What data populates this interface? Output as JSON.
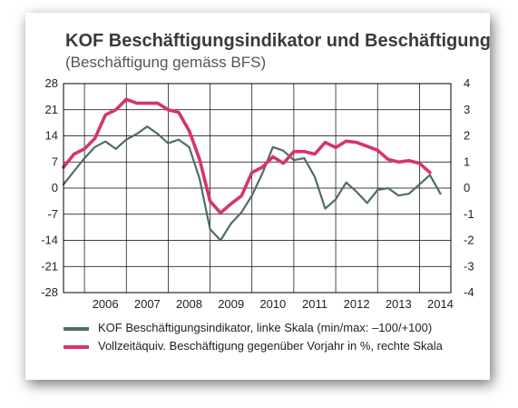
{
  "title": "KOF Beschäftigungsindikator und Beschäftigung",
  "subtitle": "(Beschäftigung gemäss BFS)",
  "colors": {
    "indicator": "#4e6e5e",
    "employment": "#d6336f",
    "grid": "#000000"
  },
  "chart_data": {
    "type": "line",
    "title": "KOF Beschäftigungsindikator und Beschäftigung",
    "subtitle": "(Beschäftigung gemäss BFS)",
    "x_categories": [
      "2006",
      "2007",
      "2008",
      "2009",
      "2010",
      "2011",
      "2012",
      "2013",
      "2014"
    ],
    "left_axis": {
      "ylim": [
        -28,
        28
      ],
      "ticks": [
        "28",
        "21",
        "14",
        "7",
        "0",
        "-7",
        "-14",
        "-21",
        "-28"
      ]
    },
    "right_axis": {
      "ylim": [
        -4,
        4
      ],
      "ticks": [
        "4",
        "3",
        "2",
        "1",
        "0",
        "-1",
        "-2",
        "-3",
        "-4"
      ]
    },
    "grid": true,
    "series": [
      {
        "name": "KOF Beschäftigungsindikator, linke Skala (min/max: –100/+100)",
        "axis": "left",
        "x": [
          2005.5,
          2005.75,
          2006.0,
          2006.25,
          2006.5,
          2006.75,
          2007.0,
          2007.25,
          2007.5,
          2007.75,
          2008.0,
          2008.25,
          2008.5,
          2008.75,
          2009.0,
          2009.25,
          2009.5,
          2009.75,
          2010.0,
          2010.25,
          2010.5,
          2010.75,
          2011.0,
          2011.25,
          2011.5,
          2011.75,
          2012.0,
          2012.25,
          2012.5,
          2012.75,
          2013.0,
          2013.25,
          2013.5,
          2013.75,
          2014.0,
          2014.25,
          2014.5
        ],
        "values": [
          1,
          4.5,
          8,
          11,
          12.5,
          10.5,
          13,
          14.5,
          16.5,
          14.5,
          12,
          13,
          11,
          2.5,
          -11,
          -14,
          -9.5,
          -6.5,
          -2,
          4,
          11,
          10,
          7.5,
          8,
          3,
          -5.5,
          -3,
          1.5,
          -1,
          -4,
          -0.5,
          0,
          -2,
          -1.5,
          1,
          3.5,
          -1.5
        ]
      },
      {
        "name": "Vollzeitäquiv. Beschäftigung gegenüber Vorjahr in %, rechte Skala",
        "axis": "right",
        "x": [
          2005.5,
          2005.75,
          2006.0,
          2006.25,
          2006.5,
          2006.75,
          2007.0,
          2007.25,
          2007.5,
          2007.75,
          2008.0,
          2008.25,
          2008.5,
          2008.75,
          2009.0,
          2009.25,
          2009.5,
          2009.75,
          2010.0,
          2010.25,
          2010.5,
          2010.75,
          2011.0,
          2011.25,
          2011.5,
          2011.75,
          2012.0,
          2012.25,
          2012.5,
          2012.75,
          2013.0,
          2013.25,
          2013.5,
          2013.75,
          2014.0,
          2014.25
        ],
        "values": [
          0.8,
          1.3,
          1.5,
          1.9,
          2.8,
          3.0,
          3.4,
          3.25,
          3.25,
          3.25,
          3.0,
          2.9,
          2.2,
          1.1,
          -0.5,
          -0.95,
          -0.6,
          -0.3,
          0.6,
          0.8,
          1.2,
          0.95,
          1.4,
          1.4,
          1.3,
          1.75,
          1.55,
          1.8,
          1.75,
          1.6,
          1.45,
          1.1,
          1.0,
          1.05,
          0.95,
          0.6
        ]
      }
    ]
  }
}
